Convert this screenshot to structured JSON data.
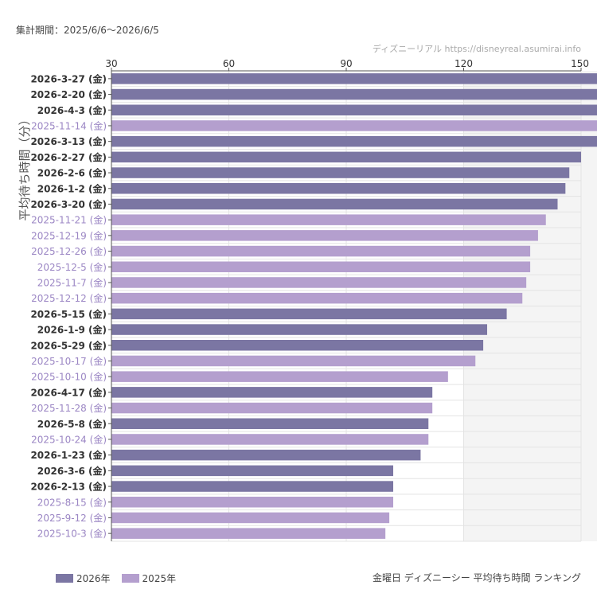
{
  "header": {
    "period_text": "集計期間：2025/6/6～2026/6/5",
    "credit_text": "ディズニーリアル  https://disneyreal.asumirai.info"
  },
  "footer": {
    "title": "金曜日 ディズニーシー 平均待ち時間 ランキング"
  },
  "colors": {
    "2026": "#7b76a3",
    "2025": "#b49fce",
    "label_2026": "#333333",
    "label_2025": "#9b86c4",
    "shade": "#f4f4f4",
    "grid": "#e3e3e3"
  },
  "chart_data": {
    "type": "bar",
    "orientation": "horizontal",
    "ylabel": "平均待ち時間（分）",
    "xlim": [
      30,
      150
    ],
    "xticks": [
      "30",
      "60",
      "90",
      "120",
      "150"
    ],
    "tick_values": [
      30,
      60,
      90,
      120,
      150
    ],
    "shaded_from": 120,
    "legend": [
      {
        "name": "2026年",
        "year": "2026"
      },
      {
        "name": "2025年",
        "year": "2025"
      }
    ],
    "categories": [
      "2026-3-27 (金)",
      "2026-2-20 (金)",
      "2026-4-3 (金)",
      "2025-11-14 (金)",
      "2026-3-13 (金)",
      "2026-2-27 (金)",
      "2026-2-6 (金)",
      "2026-1-2 (金)",
      "2026-3-20 (金)",
      "2025-11-21 (金)",
      "2025-12-19 (金)",
      "2025-12-26 (金)",
      "2025-12-5 (金)",
      "2025-11-7 (金)",
      "2025-12-12 (金)",
      "2026-5-15 (金)",
      "2026-1-9 (金)",
      "2026-5-29 (金)",
      "2025-10-17 (金)",
      "2025-10-10 (金)",
      "2026-4-17 (金)",
      "2025-11-28 (金)",
      "2026-5-8 (金)",
      "2025-10-24 (金)",
      "2026-1-23 (金)",
      "2026-3-6 (金)",
      "2026-2-13 (金)",
      "2025-8-15 (金)",
      "2025-9-12 (金)",
      "2025-10-3 (金)"
    ],
    "years": [
      "2026",
      "2026",
      "2026",
      "2025",
      "2026",
      "2026",
      "2026",
      "2026",
      "2026",
      "2025",
      "2025",
      "2025",
      "2025",
      "2025",
      "2025",
      "2026",
      "2026",
      "2026",
      "2025",
      "2025",
      "2026",
      "2025",
      "2026",
      "2025",
      "2026",
      "2026",
      "2026",
      "2025",
      "2025",
      "2025"
    ],
    "values": [
      156,
      155,
      154,
      153,
      152,
      150,
      147,
      146,
      144,
      141,
      139,
      137,
      137,
      136,
      135,
      131,
      126,
      125,
      123,
      116,
      112,
      112,
      111,
      111,
      109,
      102,
      102,
      102,
      101,
      100
    ]
  }
}
